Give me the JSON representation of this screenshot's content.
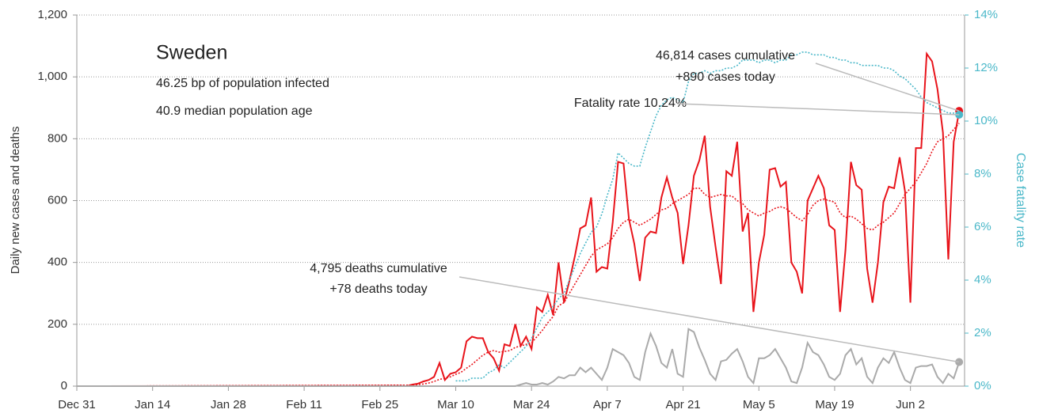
{
  "chart_data": {
    "type": "line",
    "title": "Sweden",
    "notes": [
      "46.25 bp of population infected",
      "40.9 median population age"
    ],
    "ylabel": "Daily new cases and deaths",
    "y2label": "Case fatality rate",
    "annotations": [
      "46,814 cases cumulative",
      "+890 cases today",
      "Fatality rate 10.24%",
      "4,795 deaths cumulative",
      "+78 deaths today"
    ],
    "xlim": [
      0,
      164
    ],
    "xticks": [
      {
        "value": 0,
        "label": "Dec 31"
      },
      {
        "value": 14,
        "label": "Jan 14"
      },
      {
        "value": 28,
        "label": "Jan 28"
      },
      {
        "value": 42,
        "label": "Feb 11"
      },
      {
        "value": 56,
        "label": "Feb 25"
      },
      {
        "value": 70,
        "label": "Mar 10"
      },
      {
        "value": 84,
        "label": "Mar 24"
      },
      {
        "value": 98,
        "label": "Apr 7"
      },
      {
        "value": 112,
        "label": "Apr 21"
      },
      {
        "value": 126,
        "label": "May 5"
      },
      {
        "value": 140,
        "label": "May 19"
      },
      {
        "value": 154,
        "label": "Jun 2"
      }
    ],
    "ylim": [
      0,
      1200
    ],
    "yticks": [
      0,
      200,
      400,
      600,
      800,
      {
        "value": 1000,
        "label": "1,000"
      },
      {
        "value": 1200,
        "label": "1,200"
      }
    ],
    "y2lim": [
      0,
      14
    ],
    "y2ticks": [
      {
        "value": 0,
        "label": "0%"
      },
      {
        "value": 2,
        "label": "2%"
      },
      {
        "value": 4,
        "label": "4%"
      },
      {
        "value": 6,
        "label": "6%"
      },
      {
        "value": 8,
        "label": "8%"
      },
      {
        "value": 10,
        "label": "10%"
      },
      {
        "value": 12,
        "label": "12%"
      },
      {
        "value": 14,
        "label": "14%"
      }
    ],
    "grid": true,
    "x": [
      0,
      60,
      61,
      62,
      63,
      64,
      65,
      66,
      67,
      68,
      69,
      70,
      71,
      72,
      73,
      74,
      75,
      76,
      77,
      78,
      79,
      80,
      81,
      82,
      83,
      84,
      85,
      86,
      87,
      88,
      89,
      90,
      91,
      92,
      93,
      94,
      95,
      96,
      97,
      98,
      99,
      100,
      101,
      102,
      103,
      104,
      105,
      106,
      107,
      108,
      109,
      110,
      111,
      112,
      113,
      114,
      115,
      116,
      117,
      118,
      119,
      120,
      121,
      122,
      123,
      124,
      125,
      126,
      127,
      128,
      129,
      130,
      131,
      132,
      133,
      134,
      135,
      136,
      137,
      138,
      139,
      140,
      141,
      142,
      143,
      144,
      145,
      146,
      147,
      148,
      149,
      150,
      151,
      152,
      153,
      154,
      155,
      156,
      157,
      158,
      159,
      160,
      161,
      162,
      163
    ],
    "series": [
      {
        "color": "#e8141b",
        "style": "solid",
        "marker_last": true,
        "values": [
          0,
          1,
          0,
          5,
          8,
          15,
          20,
          30,
          75,
          20,
          40,
          45,
          60,
          145,
          160,
          155,
          155,
          110,
          90,
          50,
          135,
          130,
          200,
          130,
          160,
          120,
          255,
          240,
          295,
          230,
          400,
          270,
          340,
          420,
          510,
          520,
          610,
          370,
          385,
          380,
          530,
          725,
          720,
          540,
          460,
          340,
          480,
          500,
          495,
          610,
          675,
          610,
          560,
          395,
          520,
          680,
          730,
          810,
          580,
          450,
          330,
          695,
          680,
          790,
          500,
          560,
          240,
          400,
          490,
          700,
          705,
          645,
          660,
          400,
          370,
          300,
          600,
          640,
          680,
          640,
          520,
          505,
          240,
          440,
          725,
          650,
          635,
          380,
          270,
          400,
          595,
          645,
          640,
          740,
          630,
          270,
          770,
          770,
          1075,
          1050,
          960,
          820,
          410,
          790,
          890
        ]
      },
      {
        "color": "#e8141b",
        "style": "dotted",
        "marker_last": false,
        "values": [
          0,
          3,
          3,
          4,
          5,
          7,
          10,
          15,
          22,
          25,
          30,
          38,
          45,
          58,
          70,
          85,
          100,
          110,
          115,
          110,
          112,
          115,
          125,
          130,
          135,
          140,
          160,
          180,
          205,
          225,
          260,
          270,
          300,
          330,
          360,
          390,
          420,
          440,
          450,
          460,
          480,
          510,
          530,
          540,
          530,
          520,
          530,
          540,
          555,
          570,
          575,
          590,
          600,
          610,
          620,
          640,
          640,
          620,
          610,
          615,
          620,
          615,
          615,
          600,
          590,
          570,
          560,
          550,
          560,
          565,
          575,
          580,
          575,
          560,
          545,
          535,
          555,
          585,
          600,
          605,
          600,
          595,
          560,
          545,
          550,
          540,
          525,
          510,
          505,
          520,
          530,
          545,
          560,
          590,
          620,
          640,
          660,
          690,
          720,
          760,
          790,
          800,
          810,
          830,
          850
        ]
      },
      {
        "color": "#aaaaaa",
        "style": "solid",
        "marker_last": true,
        "values": [
          0,
          0,
          0,
          0,
          0,
          0,
          0,
          0,
          0,
          0,
          0,
          0,
          0,
          0,
          0,
          0,
          0,
          0,
          0,
          0,
          0,
          0,
          0,
          5,
          10,
          5,
          5,
          10,
          5,
          15,
          30,
          25,
          35,
          35,
          60,
          45,
          60,
          40,
          20,
          60,
          120,
          110,
          100,
          75,
          30,
          20,
          110,
          170,
          130,
          75,
          60,
          120,
          40,
          30,
          185,
          175,
          125,
          85,
          40,
          20,
          80,
          85,
          105,
          120,
          80,
          30,
          10,
          90,
          90,
          100,
          120,
          90,
          60,
          15,
          10,
          60,
          140,
          110,
          100,
          70,
          30,
          20,
          40,
          100,
          120,
          70,
          90,
          30,
          10,
          60,
          90,
          75,
          110,
          60,
          20,
          10,
          60,
          65,
          65,
          70,
          30,
          10,
          40,
          25,
          78
        ]
      },
      {
        "color": "#4bb8c9",
        "style": "dotted",
        "axis": "y2",
        "marker_last": true,
        "values": [
          null,
          null,
          null,
          null,
          null,
          null,
          null,
          null,
          null,
          null,
          null,
          0.2,
          0.2,
          0.2,
          0.3,
          0.3,
          0.3,
          0.5,
          0.6,
          0.8,
          0.7,
          0.9,
          1.1,
          1.3,
          1.5,
          1.8,
          2.2,
          2.6,
          2.8,
          3.0,
          3.3,
          3.5,
          4.0,
          4.5,
          5.0,
          5.4,
          5.8,
          6.0,
          6.5,
          7.2,
          7.8,
          8.8,
          8.6,
          8.4,
          8.3,
          8.3,
          9.0,
          9.6,
          10.2,
          10.6,
          10.8,
          10.9,
          10.8,
          10.7,
          11.5,
          11.8,
          11.8,
          11.9,
          11.8,
          11.9,
          11.9,
          12.0,
          12.0,
          12.1,
          12.3,
          12.3,
          12.3,
          12.2,
          12.3,
          12.3,
          12.2,
          12.3,
          12.3,
          12.5,
          12.5,
          12.6,
          12.6,
          12.5,
          12.5,
          12.5,
          12.4,
          12.4,
          12.3,
          12.3,
          12.2,
          12.2,
          12.1,
          12.1,
          12.1,
          12.1,
          12.0,
          12.0,
          11.9,
          11.7,
          11.6,
          11.4,
          11.2,
          10.9,
          10.7,
          10.6,
          10.5,
          10.4,
          10.3,
          10.3,
          10.24
        ]
      }
    ]
  }
}
